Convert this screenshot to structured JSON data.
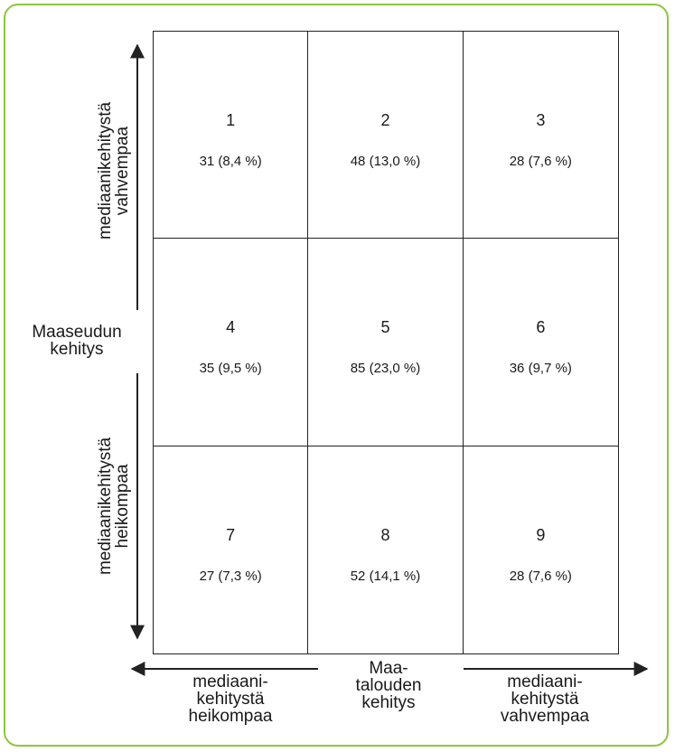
{
  "cells": [
    {
      "number": "1",
      "value": "31 (8,4 %)"
    },
    {
      "number": "2",
      "value": "48 (13,0 %)"
    },
    {
      "number": "3",
      "value": "28 (7,6 %)"
    },
    {
      "number": "4",
      "value": "35 (9,5 %)"
    },
    {
      "number": "5",
      "value": "85 (23,0 %)"
    },
    {
      "number": "6",
      "value": "36 (9,7 %)"
    },
    {
      "number": "7",
      "value": "27 (7,3 %)"
    },
    {
      "number": "8",
      "value": "52 (14,1 %)"
    },
    {
      "number": "9",
      "value": "28 (7,6 %)"
    }
  ],
  "y_axis": {
    "title": "Maaseudun\nkehitys",
    "upper_label": "mediaanikehitystä\nvahvempaa",
    "lower_label": "mediaanikehitystä\nheikompaa"
  },
  "x_axis": {
    "title": "Maa-\ntalouden\nkehitys",
    "left_label": "mediaani-\nkehitystä\nheikompaa",
    "right_label": "mediaani-\nkehitystä\nvahvempaa"
  },
  "colors": {
    "frame": "#8cc63f",
    "lines": "#222222"
  }
}
